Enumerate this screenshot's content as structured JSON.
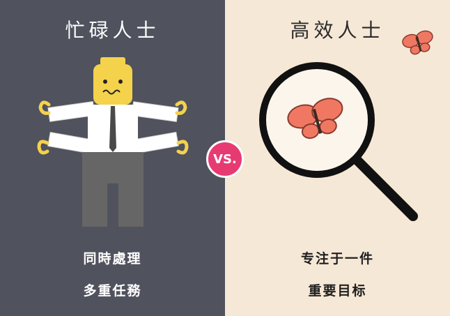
{
  "left": {
    "title": "忙碌人士",
    "captions": [
      "同時處理",
      "多重任務"
    ]
  },
  "right": {
    "title": "高效人士",
    "captions": [
      "专注于一件",
      "重要目标"
    ]
  },
  "badge": "VS.",
  "colors": {
    "left_bg": "#50525d",
    "right_bg": "#f6e8d6",
    "badge": "#e73a73",
    "butterfly": "#f07862"
  }
}
